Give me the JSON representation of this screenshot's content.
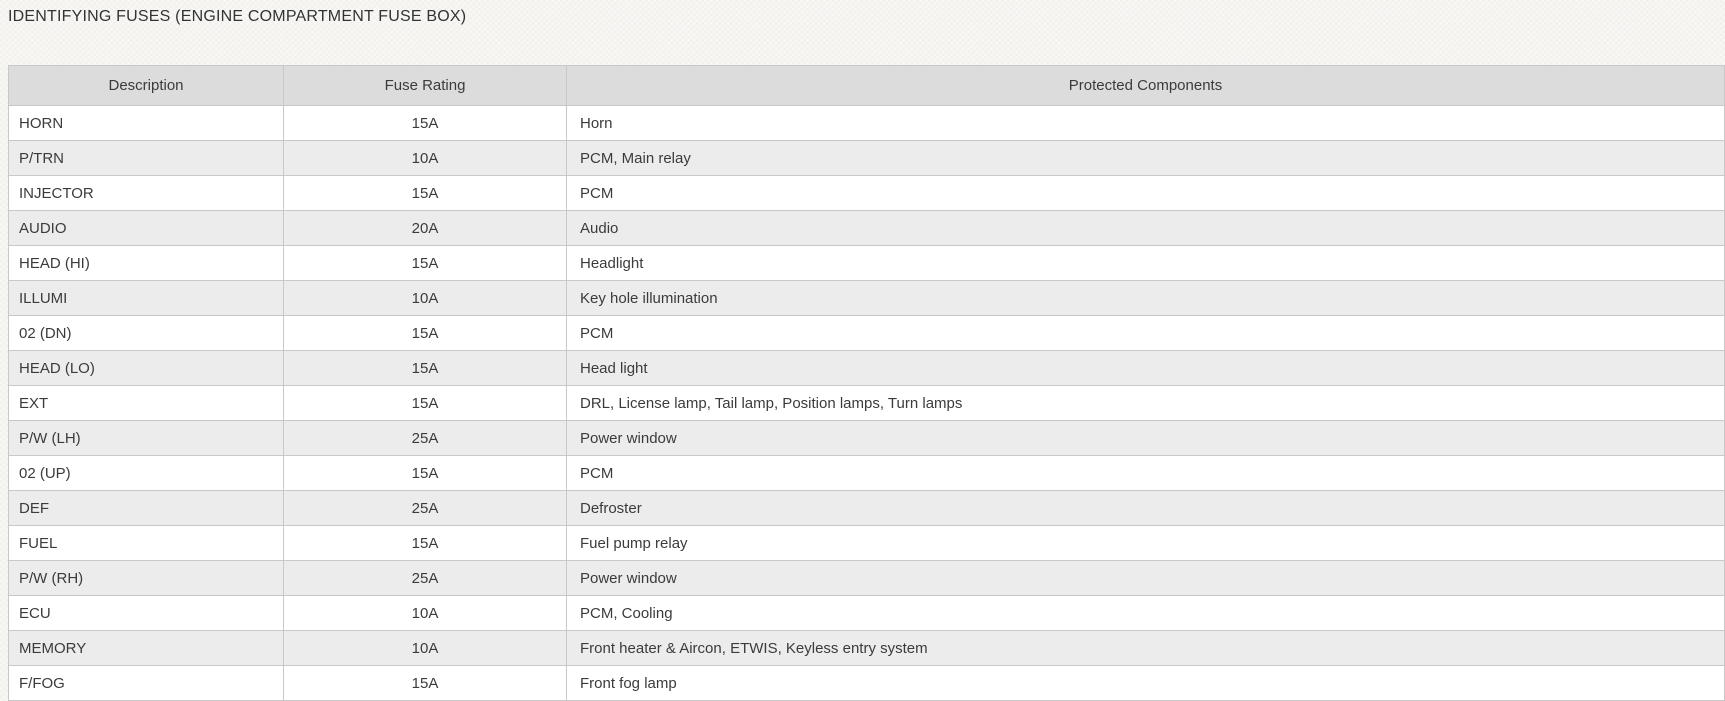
{
  "page": {
    "title": "IDENTIFYING FUSES (ENGINE COMPARTMENT FUSE BOX)"
  },
  "colors": {
    "header_bg": "#dcdcdc",
    "row_alt_bg": "#ececec",
    "row_bg": "#ffffff",
    "border": "#c8c8c8",
    "text": "#3b3b3b",
    "page_bg": "#f5f4f1"
  },
  "table": {
    "columns": [
      "Description",
      "Fuse Rating",
      "Protected Components"
    ],
    "rows": [
      {
        "description": "HORN",
        "rating": "15A",
        "components": "Horn"
      },
      {
        "description": "P/TRN",
        "rating": "10A",
        "components": "PCM, Main relay"
      },
      {
        "description": "INJECTOR",
        "rating": "15A",
        "components": "PCM"
      },
      {
        "description": "AUDIO",
        "rating": "20A",
        "components": "Audio"
      },
      {
        "description": "HEAD (HI)",
        "rating": "15A",
        "components": "Headlight"
      },
      {
        "description": "ILLUMI",
        "rating": "10A",
        "components": "Key hole illumination"
      },
      {
        "description": "02 (DN)",
        "rating": "15A",
        "components": "PCM"
      },
      {
        "description": "HEAD (LO)",
        "rating": "15A",
        "components": "Head light"
      },
      {
        "description": "EXT",
        "rating": "15A",
        "components": "DRL, License lamp, Tail lamp, Position lamps, Turn lamps"
      },
      {
        "description": "P/W (LH)",
        "rating": "25A",
        "components": "Power window"
      },
      {
        "description": "02 (UP)",
        "rating": "15A",
        "components": "PCM"
      },
      {
        "description": "DEF",
        "rating": "25A",
        "components": "Defroster"
      },
      {
        "description": "FUEL",
        "rating": "15A",
        "components": "Fuel pump relay"
      },
      {
        "description": "P/W (RH)",
        "rating": "25A",
        "components": "Power window"
      },
      {
        "description": "ECU",
        "rating": "10A",
        "components": "PCM, Cooling"
      },
      {
        "description": "MEMORY",
        "rating": "10A",
        "components": "Front heater & Aircon, ETWIS, Keyless entry system"
      },
      {
        "description": "F/FOG",
        "rating": "15A",
        "components": "Front fog lamp"
      }
    ]
  }
}
